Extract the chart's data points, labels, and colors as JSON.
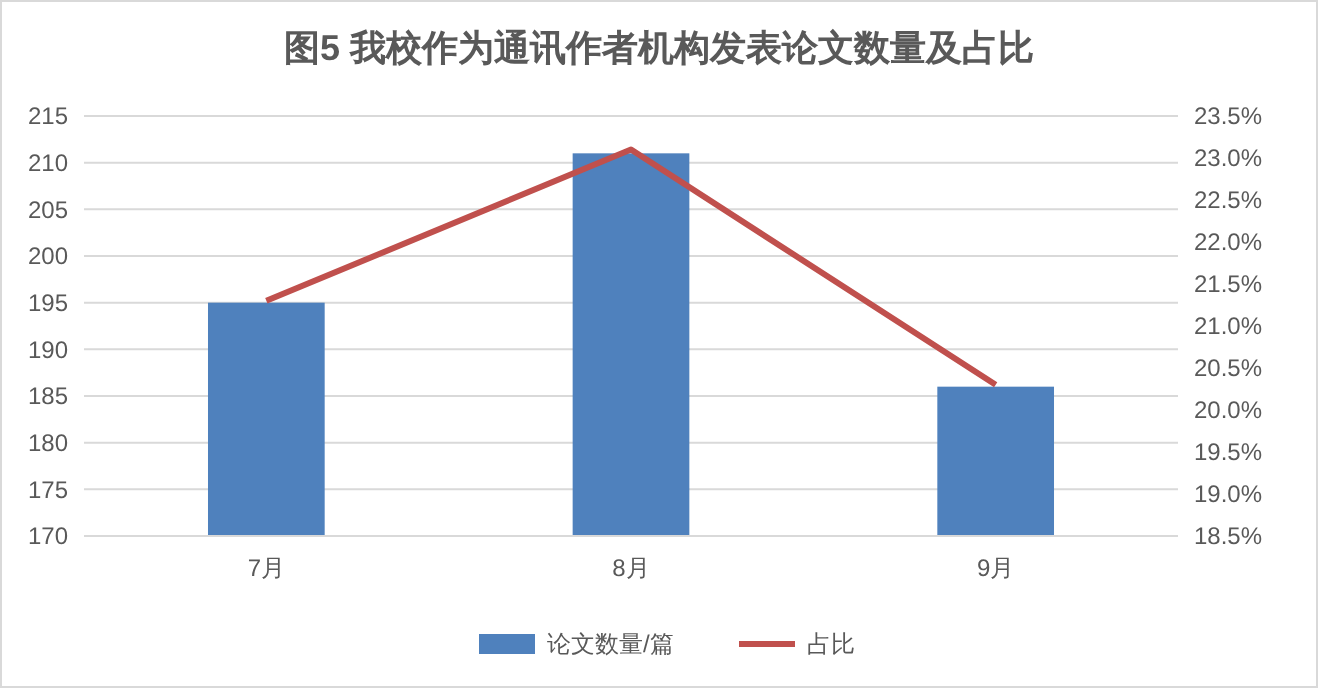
{
  "chart_data": {
    "type": "bar",
    "title": "图5 我校作为通讯作者机构发表论文数量及占比",
    "categories": [
      "7月",
      "8月",
      "9月"
    ],
    "series": [
      {
        "name": "论文数量/篇",
        "color": "#4f81bd",
        "values": [
          195,
          211,
          186
        ]
      },
      {
        "name": "占比",
        "type": "line",
        "axis": "y2",
        "color": "#c0504d",
        "values": [
          21.3,
          23.1,
          20.3
        ]
      }
    ],
    "ylim": [
      170,
      215
    ],
    "yticks": [
      170,
      175,
      180,
      185,
      190,
      195,
      200,
      205,
      210,
      215
    ],
    "y2lim": [
      18.5,
      23.5
    ],
    "y2ticks": [
      {
        "value": 18.5,
        "label": "18.5%"
      },
      {
        "value": 19,
        "label": "19.0%"
      },
      {
        "value": 19.5,
        "label": "19.5%"
      },
      {
        "value": 20,
        "label": "20.0%"
      },
      {
        "value": 20.5,
        "label": "20.5%"
      },
      {
        "value": 21,
        "label": "21.0%"
      },
      {
        "value": 21.5,
        "label": "21.5%"
      },
      {
        "value": 22,
        "label": "22.0%"
      },
      {
        "value": 22.5,
        "label": "22.5%"
      },
      {
        "value": 23,
        "label": "23.0%"
      },
      {
        "value": 23.5,
        "label": "23.5%"
      }
    ],
    "grid": "y",
    "legend": "bottom",
    "marker": "none"
  }
}
